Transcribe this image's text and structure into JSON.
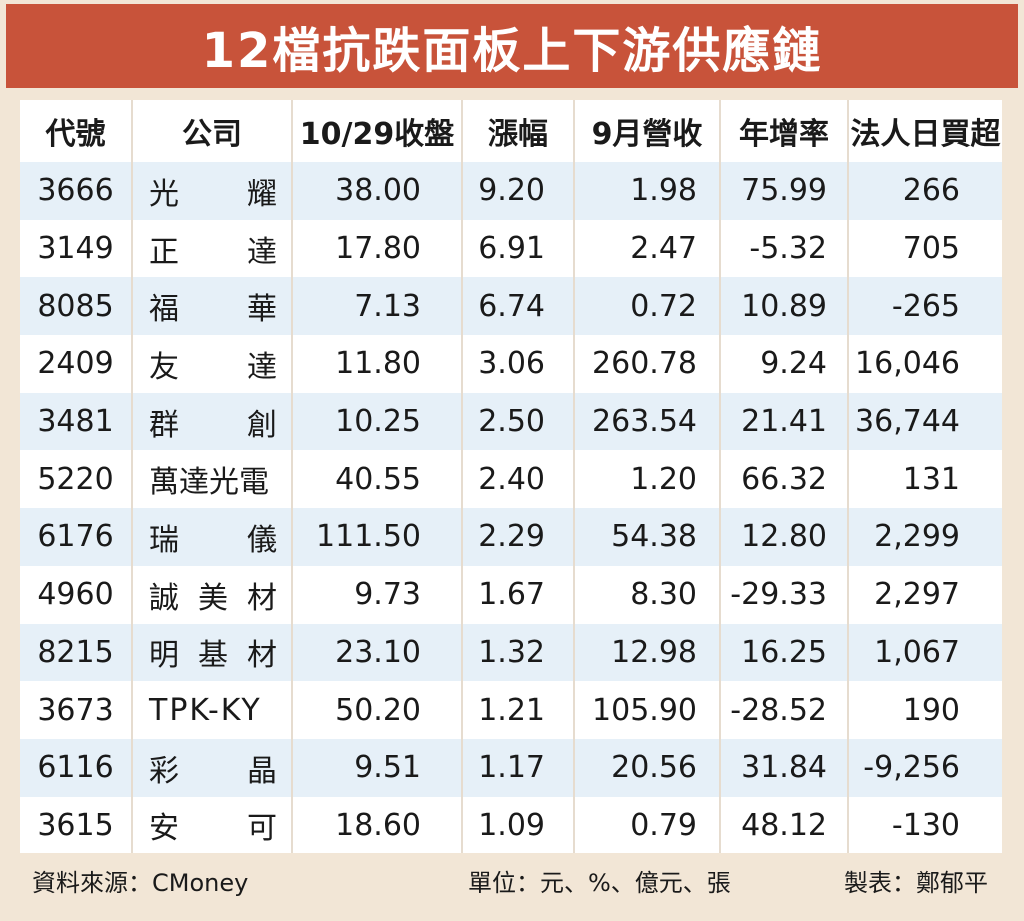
{
  "title": "12檔抗跌面板上下游供應鏈",
  "headers": [
    "代號",
    "公司",
    "10/29收盤",
    "漲幅",
    "9月營收",
    "年增率",
    "法人日買超"
  ],
  "rows": [
    [
      "3666",
      "光耀",
      "38.00",
      "9.20",
      "1.98",
      "75.99",
      "266"
    ],
    [
      "3149",
      "正達",
      "17.80",
      "6.91",
      "2.47",
      "-5.32",
      "705"
    ],
    [
      "8085",
      "福華",
      "7.13",
      "6.74",
      "0.72",
      "10.89",
      "-265"
    ],
    [
      "2409",
      "友達",
      "11.80",
      "3.06",
      "260.78",
      "9.24",
      "16,046"
    ],
    [
      "3481",
      "群創",
      "10.25",
      "2.50",
      "263.54",
      "21.41",
      "36,744"
    ],
    [
      "5220",
      "萬達光電",
      "40.55",
      "2.40",
      "1.20",
      "66.32",
      "131"
    ],
    [
      "6176",
      "瑞儀",
      "111.50",
      "2.29",
      "54.38",
      "12.80",
      "2,299"
    ],
    [
      "4960",
      "誠美材",
      "9.73",
      "1.67",
      "8.30",
      "-29.33",
      "2,297"
    ],
    [
      "8215",
      "明基材",
      "23.10",
      "1.32",
      "12.98",
      "16.25",
      "1,067"
    ],
    [
      "3673",
      "TPK-KY",
      "50.20",
      "1.21",
      "105.90",
      "-28.52",
      "190"
    ],
    [
      "6116",
      "彩晶",
      "9.51",
      "1.17",
      "20.56",
      "31.84",
      "-9,256"
    ],
    [
      "3615",
      "安可",
      "18.60",
      "1.09",
      "0.79",
      "48.12",
      "-130"
    ]
  ],
  "footer": {
    "source": "資料來源：CMoney",
    "unit": "單位：元、%、億元、張",
    "maker": "製表：鄭郁平"
  },
  "colors": {
    "title_bar": "#c8533a",
    "row_stripe": "#e6f0f8",
    "background": "#f2e6d6"
  }
}
